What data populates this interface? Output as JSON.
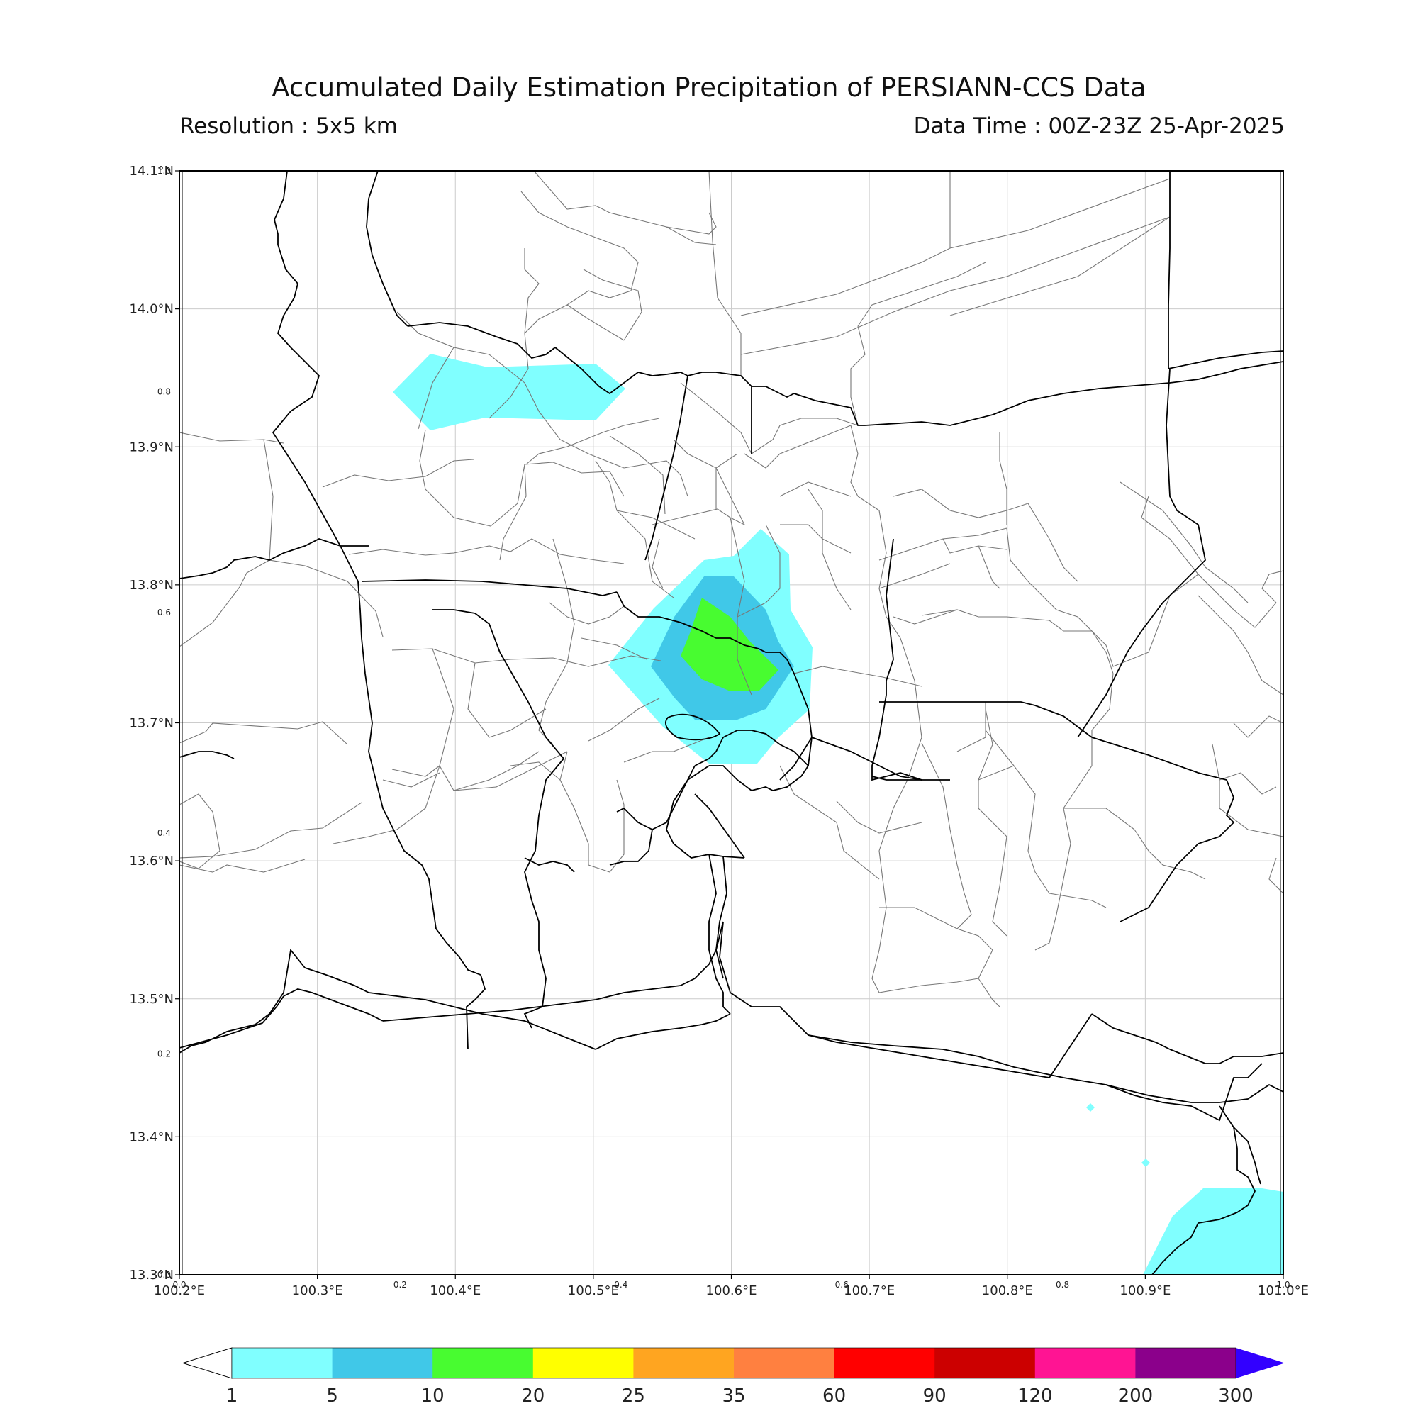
{
  "header": {
    "title": "Accumulated Daily Estimation Precipitation of PERSIANN-CCS Data",
    "resolution": "Resolution : 5x5 km",
    "data_time": "Data Time : 00Z-23Z 25-Apr-2025"
  },
  "map": {
    "lon_range": [
      100.2,
      101.0
    ],
    "lat_range": [
      13.3,
      14.1
    ],
    "lon_ticks": [
      {
        "value": 100.2,
        "label": "100.2°E"
      },
      {
        "value": 100.3,
        "label": "100.3°E"
      },
      {
        "value": 100.4,
        "label": "100.4°E"
      },
      {
        "value": 100.5,
        "label": "100.5°E"
      },
      {
        "value": 100.6,
        "label": "100.6°E"
      },
      {
        "value": 100.7,
        "label": "100.7°E"
      },
      {
        "value": 100.8,
        "label": "100.8°E"
      },
      {
        "value": 100.9,
        "label": "100.9°E"
      },
      {
        "value": 101.0,
        "label": "101.0°E"
      }
    ],
    "lat_ticks": [
      {
        "value": 13.3,
        "label": "13.3°N"
      },
      {
        "value": 13.4,
        "label": "13.4°N"
      },
      {
        "value": 13.5,
        "label": "13.5°N"
      },
      {
        "value": 13.6,
        "label": "13.6°N"
      },
      {
        "value": 13.7,
        "label": "13.7°N"
      },
      {
        "value": 13.8,
        "label": "13.8°N"
      },
      {
        "value": 13.9,
        "label": "13.9°N"
      },
      {
        "value": 14.0,
        "label": "14.0°N"
      },
      {
        "value": 14.1,
        "label": "14.1°N"
      }
    ],
    "secondary_x_ticks": [
      {
        "frac": 0.0,
        "label": "0.0"
      },
      {
        "frac": 0.2,
        "label": "0.2"
      },
      {
        "frac": 0.4,
        "label": "0.4"
      },
      {
        "frac": 0.6,
        "label": "0.6"
      },
      {
        "frac": 0.8,
        "label": "0.8"
      },
      {
        "frac": 1.0,
        "label": "1.0"
      }
    ],
    "secondary_y_ticks": [
      {
        "frac": 0.0,
        "label": "0.0"
      },
      {
        "frac": 0.2,
        "label": "0.2"
      },
      {
        "frac": 0.4,
        "label": "0.4"
      },
      {
        "frac": 0.6,
        "label": "0.6"
      },
      {
        "frac": 0.8,
        "label": "0.8"
      },
      {
        "frac": 1.0,
        "label": "1.0"
      }
    ],
    "grid": true,
    "gridline_color": "#cccccc",
    "boundary_color": "#000000",
    "district_color": "#777777"
  },
  "colorbar": {
    "ticks": [
      "1",
      "5",
      "10",
      "20",
      "25",
      "35",
      "60",
      "90",
      "120",
      "200",
      "300"
    ],
    "colors": [
      "#80ffff",
      "#40c8e8",
      "#48fc30",
      "#ffff00",
      "#ffa520",
      "#ff8040",
      "#ff0000",
      "#cc0000",
      "#ff1493",
      "#8b008b"
    ],
    "under_color": "#ffffff",
    "over_color": "#3200ff"
  }
}
